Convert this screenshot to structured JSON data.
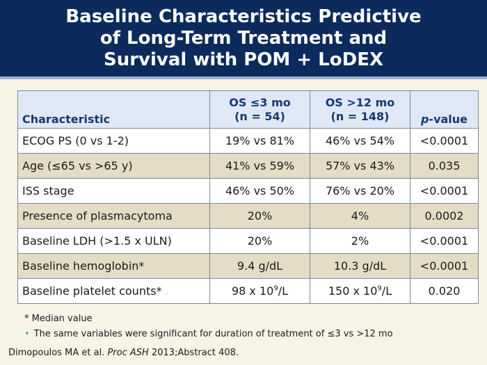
{
  "title": {
    "lines": [
      "Baseline Characteristics Predictive",
      "of Long-Term Treatment and",
      "Survival with POM + LoDEX"
    ]
  },
  "table": {
    "headers": {
      "characteristic": "Characteristic",
      "os_short": [
        "OS ≤3 mo",
        "(n = 54)"
      ],
      "os_long": [
        "OS >12 mo",
        "(n = 148)"
      ],
      "p_value_italic": "p",
      "p_value_rest": "-value"
    },
    "rows": [
      {
        "characteristic": "ECOG PS (0 vs 1-2)",
        "os_short": "19% vs 81%",
        "os_long": "46% vs 54%",
        "p_value": "<0.0001"
      },
      {
        "characteristic": "Age (≤65 vs >65 y)",
        "os_short": "41% vs 59%",
        "os_long": "57% vs 43%",
        "p_value": "0.035"
      },
      {
        "characteristic": "ISS stage",
        "os_short": "46% vs 50%",
        "os_long": "76% vs 20%",
        "p_value": "<0.0001"
      },
      {
        "characteristic": "Presence of plasmacytoma",
        "os_short": "20%",
        "os_long": "4%",
        "p_value": "0.0002"
      },
      {
        "characteristic": "Baseline LDH (>1.5 x ULN)",
        "os_short": "20%",
        "os_long": "2%",
        "p_value": "<0.0001"
      },
      {
        "characteristic": "Baseline hemoglobin*",
        "os_short": "9.4 g/dL",
        "os_long": "10.3 g/dL",
        "p_value": "<0.0001"
      },
      {
        "characteristic": "Baseline platelet counts*",
        "os_short": [
          "98 x 10",
          "9",
          "/L"
        ],
        "os_long": [
          "150 x 10",
          "9",
          "/L"
        ],
        "p_value": "0.020"
      }
    ]
  },
  "footnote": "* Median value",
  "bullet": "The same variables were significant for duration of treatment of ≤3 vs >12 mo",
  "citation": {
    "authors": "Dimopoulos MA et al. ",
    "journal": "Proc ASH",
    "rest": " 2013;Abstract 408."
  },
  "colors": {
    "header_bg": "#0c2a5c",
    "table_header_bg": "#dfe9f6",
    "row_alt_bg": "#e4dcc6",
    "slide_bg": "#f7f4e6",
    "bullet": "#4a9fb8"
  }
}
